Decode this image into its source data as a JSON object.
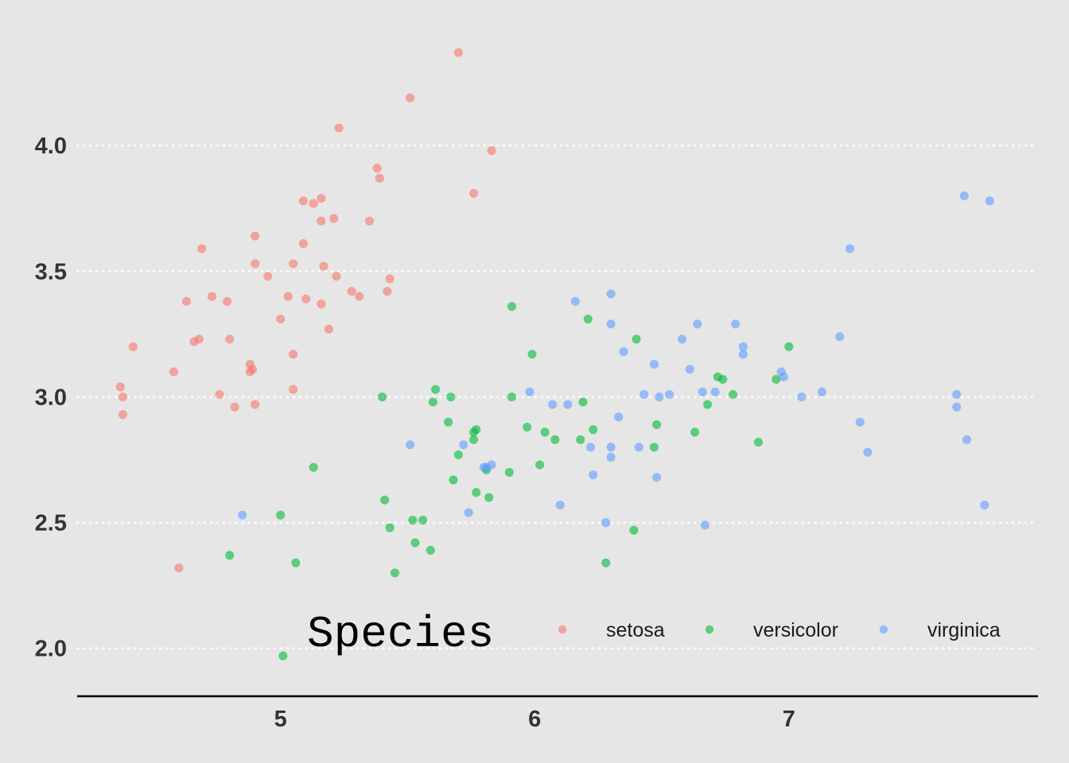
{
  "chart_data": {
    "type": "scatter",
    "title": "",
    "xlabel": "",
    "ylabel": "",
    "xlim": [
      4.2,
      7.98
    ],
    "ylim": [
      1.86,
      4.44
    ],
    "x_ticks": [
      5,
      6,
      7
    ],
    "y_ticks": [
      2.0,
      2.5,
      3.0,
      3.5,
      4.0
    ],
    "x_tick_labels": [
      "5",
      "6",
      "7"
    ],
    "y_tick_labels": [
      "2.0",
      "2.5",
      "3.0",
      "3.5",
      "4.0"
    ],
    "grid": "horizontal dotted major gridlines only",
    "point_opacity": 0.6,
    "background_color": "#e6e6e6",
    "legend": {
      "title": "Species",
      "position": "bottom-right inside plot, horizontal",
      "entries": [
        "setosa",
        "versicolor",
        "virginica"
      ]
    },
    "series": [
      {
        "name": "setosa",
        "color": "#f8766d",
        "points": [
          [
            4.37,
            3.04
          ],
          [
            4.38,
            3.0
          ],
          [
            4.38,
            2.93
          ],
          [
            4.42,
            3.2
          ],
          [
            4.58,
            3.1
          ],
          [
            4.6,
            2.32
          ],
          [
            4.63,
            3.38
          ],
          [
            4.66,
            3.22
          ],
          [
            4.68,
            3.23
          ],
          [
            4.69,
            3.59
          ],
          [
            4.73,
            3.4
          ],
          [
            4.76,
            3.01
          ],
          [
            4.79,
            3.38
          ],
          [
            4.8,
            3.23
          ],
          [
            4.88,
            3.13
          ],
          [
            4.88,
            3.1
          ],
          [
            4.89,
            3.11
          ],
          [
            4.9,
            2.97
          ],
          [
            4.9,
            3.53
          ],
          [
            4.9,
            3.64
          ],
          [
            4.95,
            3.48
          ],
          [
            5.0,
            3.31
          ],
          [
            5.03,
            3.4
          ],
          [
            5.05,
            3.53
          ],
          [
            5.05,
            3.17
          ],
          [
            5.05,
            3.03
          ],
          [
            5.09,
            3.61
          ],
          [
            5.09,
            3.78
          ],
          [
            5.1,
            3.39
          ],
          [
            5.13,
            3.77
          ],
          [
            5.16,
            3.79
          ],
          [
            5.16,
            3.7
          ],
          [
            5.16,
            3.37
          ],
          [
            5.17,
            3.52
          ],
          [
            5.19,
            3.27
          ],
          [
            5.21,
            3.71
          ],
          [
            5.22,
            3.48
          ],
          [
            5.23,
            4.07
          ],
          [
            5.28,
            3.42
          ],
          [
            5.31,
            3.4
          ],
          [
            5.35,
            3.7
          ],
          [
            5.38,
            3.91
          ],
          [
            5.39,
            3.87
          ],
          [
            5.42,
            3.42
          ],
          [
            5.43,
            3.47
          ],
          [
            5.51,
            4.19
          ],
          [
            5.76,
            3.81
          ],
          [
            5.7,
            4.37
          ],
          [
            5.83,
            3.98
          ],
          [
            4.82,
            2.96
          ]
        ]
      },
      {
        "name": "versicolor",
        "color": "#00ba38",
        "points": [
          [
            4.8,
            2.37
          ],
          [
            5.0,
            2.53
          ],
          [
            5.01,
            1.97
          ],
          [
            5.06,
            2.34
          ],
          [
            5.13,
            2.72
          ],
          [
            5.4,
            3.0
          ],
          [
            5.41,
            2.59
          ],
          [
            5.43,
            2.48
          ],
          [
            5.45,
            2.3
          ],
          [
            5.53,
            2.42
          ],
          [
            5.56,
            2.51
          ],
          [
            5.59,
            2.39
          ],
          [
            5.6,
            2.98
          ],
          [
            5.61,
            3.03
          ],
          [
            5.66,
            2.9
          ],
          [
            5.67,
            3.0
          ],
          [
            5.68,
            2.67
          ],
          [
            5.7,
            2.77
          ],
          [
            5.76,
            2.83
          ],
          [
            5.77,
            2.87
          ],
          [
            5.77,
            2.62
          ],
          [
            5.81,
            2.71
          ],
          [
            5.82,
            2.6
          ],
          [
            5.9,
            2.7
          ],
          [
            5.91,
            3.0
          ],
          [
            5.91,
            3.36
          ],
          [
            5.97,
            2.88
          ],
          [
            5.99,
            3.17
          ],
          [
            6.02,
            2.73
          ],
          [
            6.04,
            2.86
          ],
          [
            6.08,
            2.83
          ],
          [
            6.18,
            2.83
          ],
          [
            6.19,
            2.98
          ],
          [
            6.21,
            3.31
          ],
          [
            6.23,
            2.87
          ],
          [
            6.28,
            2.34
          ],
          [
            6.39,
            2.47
          ],
          [
            6.4,
            3.23
          ],
          [
            6.47,
            2.8
          ],
          [
            6.48,
            2.89
          ],
          [
            6.63,
            2.86
          ],
          [
            6.68,
            2.97
          ],
          [
            6.72,
            3.08
          ],
          [
            6.74,
            3.07
          ],
          [
            6.78,
            3.01
          ],
          [
            6.88,
            2.82
          ],
          [
            6.95,
            3.07
          ],
          [
            7.0,
            3.2
          ],
          [
            5.76,
            2.86
          ],
          [
            5.52,
            2.51
          ]
        ]
      },
      {
        "name": "virginica",
        "color": "#619cff",
        "points": [
          [
            4.85,
            2.53
          ],
          [
            5.51,
            2.81
          ],
          [
            5.72,
            2.81
          ],
          [
            5.74,
            2.54
          ],
          [
            5.8,
            2.72
          ],
          [
            5.83,
            2.73
          ],
          [
            5.98,
            3.02
          ],
          [
            6.07,
            2.97
          ],
          [
            6.1,
            2.57
          ],
          [
            6.13,
            2.97
          ],
          [
            6.16,
            3.38
          ],
          [
            6.22,
            2.8
          ],
          [
            6.23,
            2.69
          ],
          [
            6.28,
            2.5
          ],
          [
            6.3,
            2.76
          ],
          [
            6.3,
            2.8
          ],
          [
            6.3,
            3.29
          ],
          [
            6.3,
            3.41
          ],
          [
            6.33,
            2.92
          ],
          [
            6.35,
            3.18
          ],
          [
            6.41,
            2.8
          ],
          [
            6.43,
            3.01
          ],
          [
            6.47,
            3.13
          ],
          [
            6.48,
            2.68
          ],
          [
            6.49,
            3.0
          ],
          [
            6.53,
            3.01
          ],
          [
            6.58,
            3.23
          ],
          [
            6.61,
            3.11
          ],
          [
            6.64,
            3.29
          ],
          [
            6.66,
            3.02
          ],
          [
            6.67,
            2.49
          ],
          [
            6.71,
            3.02
          ],
          [
            6.79,
            3.29
          ],
          [
            6.82,
            3.17
          ],
          [
            6.82,
            3.2
          ],
          [
            6.97,
            3.1
          ],
          [
            6.98,
            3.08
          ],
          [
            7.05,
            3.0
          ],
          [
            7.13,
            3.02
          ],
          [
            7.2,
            3.24
          ],
          [
            7.24,
            3.59
          ],
          [
            7.28,
            2.9
          ],
          [
            7.31,
            2.78
          ],
          [
            7.66,
            3.01
          ],
          [
            7.66,
            2.96
          ],
          [
            7.7,
            2.83
          ],
          [
            7.69,
            3.8
          ],
          [
            7.79,
            3.78
          ],
          [
            7.77,
            2.57
          ],
          [
            5.81,
            2.72
          ]
        ]
      }
    ]
  }
}
